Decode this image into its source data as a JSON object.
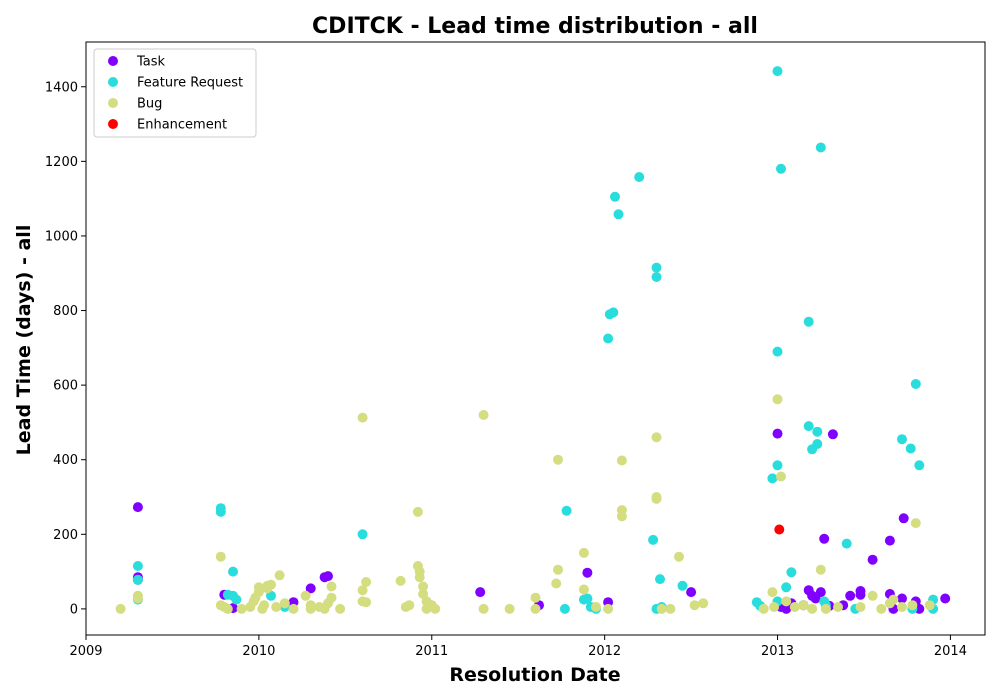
{
  "chart_data": {
    "type": "scatter",
    "title": "CDITCK - Lead time distribution - all",
    "xlabel": "Resolution Date",
    "ylabel": "Lead Time (days) - all",
    "x_unit": "year",
    "xlim": [
      2009.0,
      2014.2
    ],
    "ylim": [
      -70,
      1520
    ],
    "x_ticks": [
      2009,
      2010,
      2011,
      2012,
      2013,
      2014
    ],
    "y_ticks": [
      0,
      200,
      400,
      600,
      800,
      1000,
      1200,
      1400
    ],
    "grid": false,
    "legend_position": "top-left",
    "series": [
      {
        "name": "Task",
        "color": "#8000ff",
        "points": [
          [
            2009.3,
            273
          ],
          [
            2009.3,
            85
          ],
          [
            2009.3,
            78
          ],
          [
            2009.8,
            38
          ],
          [
            2009.85,
            2
          ],
          [
            2010.2,
            18
          ],
          [
            2010.3,
            55
          ],
          [
            2010.38,
            85
          ],
          [
            2010.4,
            88
          ],
          [
            2011.28,
            45
          ],
          [
            2011.62,
            10
          ],
          [
            2011.9,
            97
          ],
          [
            2012.02,
            18
          ],
          [
            2012.5,
            45
          ],
          [
            2013.0,
            470
          ],
          [
            2013.02,
            5
          ],
          [
            2013.05,
            0
          ],
          [
            2013.08,
            15
          ],
          [
            2013.15,
            10
          ],
          [
            2013.18,
            50
          ],
          [
            2013.2,
            35
          ],
          [
            2013.22,
            28
          ],
          [
            2013.25,
            45
          ],
          [
            2013.27,
            188
          ],
          [
            2013.3,
            8
          ],
          [
            2013.32,
            468
          ],
          [
            2013.38,
            10
          ],
          [
            2013.42,
            35
          ],
          [
            2013.48,
            48
          ],
          [
            2013.48,
            38
          ],
          [
            2013.55,
            132
          ],
          [
            2013.65,
            40
          ],
          [
            2013.65,
            183
          ],
          [
            2013.67,
            0
          ],
          [
            2013.72,
            28
          ],
          [
            2013.73,
            243
          ],
          [
            2013.8,
            20
          ],
          [
            2013.82,
            0
          ],
          [
            2013.97,
            28
          ]
        ]
      },
      {
        "name": "Feature Request",
        "color": "#2adddd",
        "points": [
          [
            2009.3,
            25
          ],
          [
            2009.3,
            115
          ],
          [
            2009.3,
            78
          ],
          [
            2009.78,
            270
          ],
          [
            2009.78,
            260
          ],
          [
            2009.82,
            38
          ],
          [
            2009.85,
            100
          ],
          [
            2009.85,
            35
          ],
          [
            2009.87,
            25
          ],
          [
            2010.07,
            35
          ],
          [
            2010.15,
            5
          ],
          [
            2010.6,
            200
          ],
          [
            2011.77,
            0
          ],
          [
            2011.78,
            263
          ],
          [
            2011.88,
            25
          ],
          [
            2011.9,
            28
          ],
          [
            2011.92,
            5
          ],
          [
            2011.95,
            0
          ],
          [
            2012.02,
            725
          ],
          [
            2012.03,
            790
          ],
          [
            2012.05,
            795
          ],
          [
            2012.06,
            1105
          ],
          [
            2012.08,
            1058
          ],
          [
            2012.2,
            1158
          ],
          [
            2012.28,
            185
          ],
          [
            2012.3,
            915
          ],
          [
            2012.3,
            890
          ],
          [
            2012.3,
            0
          ],
          [
            2012.32,
            80
          ],
          [
            2012.33,
            5
          ],
          [
            2012.45,
            62
          ],
          [
            2012.88,
            18
          ],
          [
            2012.9,
            8
          ],
          [
            2012.97,
            350
          ],
          [
            2013.0,
            690
          ],
          [
            2013.0,
            385
          ],
          [
            2013.0,
            20
          ],
          [
            2013.0,
            1442
          ],
          [
            2013.02,
            1180
          ],
          [
            2013.05,
            58
          ],
          [
            2013.08,
            98
          ],
          [
            2013.18,
            770
          ],
          [
            2013.18,
            490
          ],
          [
            2013.2,
            428
          ],
          [
            2013.23,
            475
          ],
          [
            2013.23,
            442
          ],
          [
            2013.25,
            1237
          ],
          [
            2013.27,
            20
          ],
          [
            2013.28,
            10
          ],
          [
            2013.45,
            0
          ],
          [
            2013.4,
            175
          ],
          [
            2013.72,
            455
          ],
          [
            2013.77,
            430
          ],
          [
            2013.78,
            0
          ],
          [
            2013.8,
            603
          ],
          [
            2013.82,
            385
          ],
          [
            2013.9,
            25
          ],
          [
            2013.9,
            0
          ]
        ]
      },
      {
        "name": "Bug",
        "color": "#d4dd80",
        "points": [
          [
            2009.2,
            0
          ],
          [
            2009.3,
            35
          ],
          [
            2009.3,
            28
          ],
          [
            2009.78,
            140
          ],
          [
            2009.78,
            10
          ],
          [
            2009.8,
            5
          ],
          [
            2009.82,
            0
          ],
          [
            2009.9,
            0
          ],
          [
            2009.95,
            5
          ],
          [
            2009.97,
            20
          ],
          [
            2009.98,
            30
          ],
          [
            2010.0,
            45
          ],
          [
            2010.0,
            58
          ],
          [
            2010.02,
            0
          ],
          [
            2010.03,
            10
          ],
          [
            2010.05,
            55
          ],
          [
            2010.05,
            62
          ],
          [
            2010.07,
            65
          ],
          [
            2010.1,
            5
          ],
          [
            2010.12,
            90
          ],
          [
            2010.15,
            15
          ],
          [
            2010.2,
            0
          ],
          [
            2010.27,
            35
          ],
          [
            2010.3,
            10
          ],
          [
            2010.3,
            0
          ],
          [
            2010.35,
            5
          ],
          [
            2010.38,
            0
          ],
          [
            2010.4,
            15
          ],
          [
            2010.42,
            60
          ],
          [
            2010.42,
            30
          ],
          [
            2010.47,
            0
          ],
          [
            2010.6,
            513
          ],
          [
            2010.6,
            50
          ],
          [
            2010.62,
            72
          ],
          [
            2010.62,
            18
          ],
          [
            2010.6,
            20
          ],
          [
            2010.82,
            75
          ],
          [
            2010.85,
            5
          ],
          [
            2010.87,
            10
          ],
          [
            2010.92,
            260
          ],
          [
            2010.92,
            115
          ],
          [
            2010.93,
            100
          ],
          [
            2010.93,
            85
          ],
          [
            2010.95,
            60
          ],
          [
            2010.95,
            40
          ],
          [
            2010.97,
            20
          ],
          [
            2010.97,
            0
          ],
          [
            2011.0,
            10
          ],
          [
            2011.02,
            0
          ],
          [
            2011.3,
            520
          ],
          [
            2011.3,
            0
          ],
          [
            2011.45,
            0
          ],
          [
            2011.6,
            30
          ],
          [
            2011.6,
            0
          ],
          [
            2011.72,
            68
          ],
          [
            2011.73,
            400
          ],
          [
            2011.73,
            105
          ],
          [
            2011.88,
            150
          ],
          [
            2011.88,
            52
          ],
          [
            2011.95,
            5
          ],
          [
            2012.02,
            0
          ],
          [
            2012.1,
            398
          ],
          [
            2012.1,
            265
          ],
          [
            2012.1,
            248
          ],
          [
            2012.3,
            460
          ],
          [
            2012.3,
            300
          ],
          [
            2012.3,
            295
          ],
          [
            2012.33,
            0
          ],
          [
            2012.38,
            0
          ],
          [
            2012.43,
            140
          ],
          [
            2012.52,
            10
          ],
          [
            2012.57,
            15
          ],
          [
            2012.92,
            0
          ],
          [
            2012.97,
            45
          ],
          [
            2012.98,
            5
          ],
          [
            2013.0,
            562
          ],
          [
            2013.02,
            355
          ],
          [
            2013.05,
            20
          ],
          [
            2013.1,
            5
          ],
          [
            2013.15,
            10
          ],
          [
            2013.2,
            0
          ],
          [
            2013.25,
            105
          ],
          [
            2013.28,
            0
          ],
          [
            2013.35,
            5
          ],
          [
            2013.48,
            5
          ],
          [
            2013.55,
            35
          ],
          [
            2013.6,
            0
          ],
          [
            2013.65,
            15
          ],
          [
            2013.67,
            25
          ],
          [
            2013.72,
            5
          ],
          [
            2013.8,
            230
          ],
          [
            2013.78,
            10
          ],
          [
            2013.88,
            10
          ]
        ]
      },
      {
        "name": "Enhancement",
        "color": "#ff0000",
        "points": [
          [
            2013.01,
            213
          ]
        ]
      }
    ]
  }
}
